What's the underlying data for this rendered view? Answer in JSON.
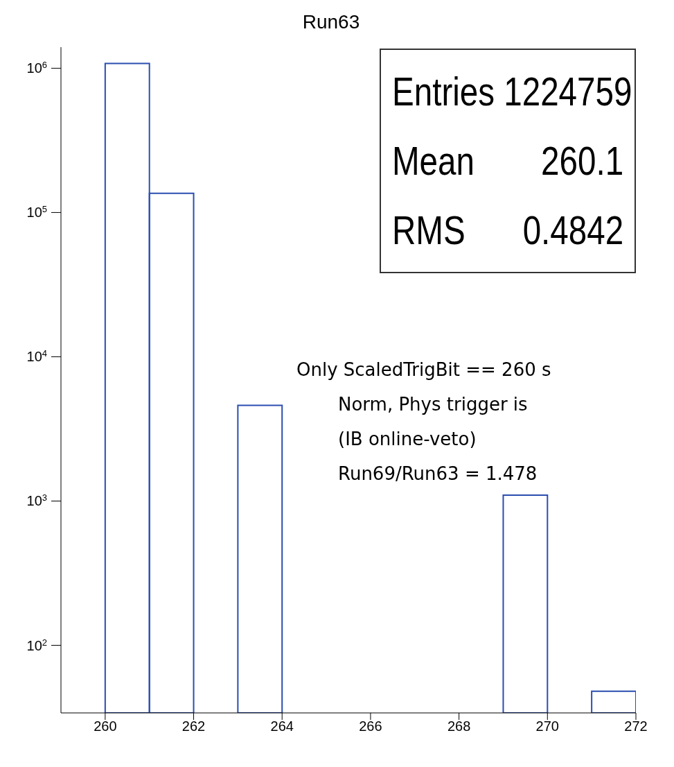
{
  "chart_data": {
    "type": "histogram",
    "title": "Run63",
    "bins": [
      260,
      261,
      262,
      263,
      264,
      265,
      266,
      267,
      268,
      269,
      270,
      271,
      272
    ],
    "values": [
      1080000,
      136000,
      null,
      4600,
      null,
      null,
      null,
      null,
      null,
      1100,
      null,
      48
    ],
    "color": "#2a4db0",
    "xlim": [
      259,
      272
    ],
    "xticks": [
      260,
      262,
      264,
      266,
      268,
      270,
      272
    ],
    "ylim": [
      34,
      1400000
    ],
    "yticks": [
      {
        "value": 100,
        "label": "10$^{2}$"
      },
      {
        "value": 1000,
        "label": "10$^{3}$"
      },
      {
        "value": 10000,
        "label": "10$^{4}$"
      },
      {
        "value": 100000,
        "label": "10$^{5}$"
      },
      {
        "value": 1000000,
        "label": "10$^{6}$"
      }
    ],
    "log": "y",
    "annotations": [
      "Entries 1224759",
      "Mean 260.1",
      "RMS 0.4842",
      "Only ScaledTrigBit == 260 s",
      "Norm, Phys trigger is",
      "(IB online-veto)",
      "Run69/Run63 = 1.478"
    ]
  }
}
